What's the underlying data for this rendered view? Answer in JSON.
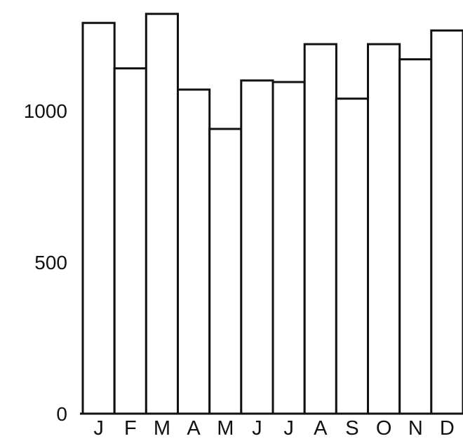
{
  "chart_data": {
    "type": "bar",
    "title": "",
    "xlabel": "",
    "ylabel": "",
    "categories": [
      "J",
      "F",
      "M",
      "A",
      "M",
      "J",
      "J",
      "A",
      "S",
      "O",
      "N",
      "D"
    ],
    "values": [
      1290,
      1140,
      1320,
      1070,
      940,
      1100,
      1095,
      1220,
      1040,
      1220,
      1170,
      1265
    ],
    "ylim": [
      0,
      1350
    ],
    "yticks": [
      0,
      500,
      1000
    ],
    "ytick_labels": [
      "0",
      "500",
      "1000"
    ],
    "grid": false,
    "legend": "none",
    "colors": {
      "bar_fill": "#ffffff",
      "bar_stroke": "#111111"
    }
  }
}
